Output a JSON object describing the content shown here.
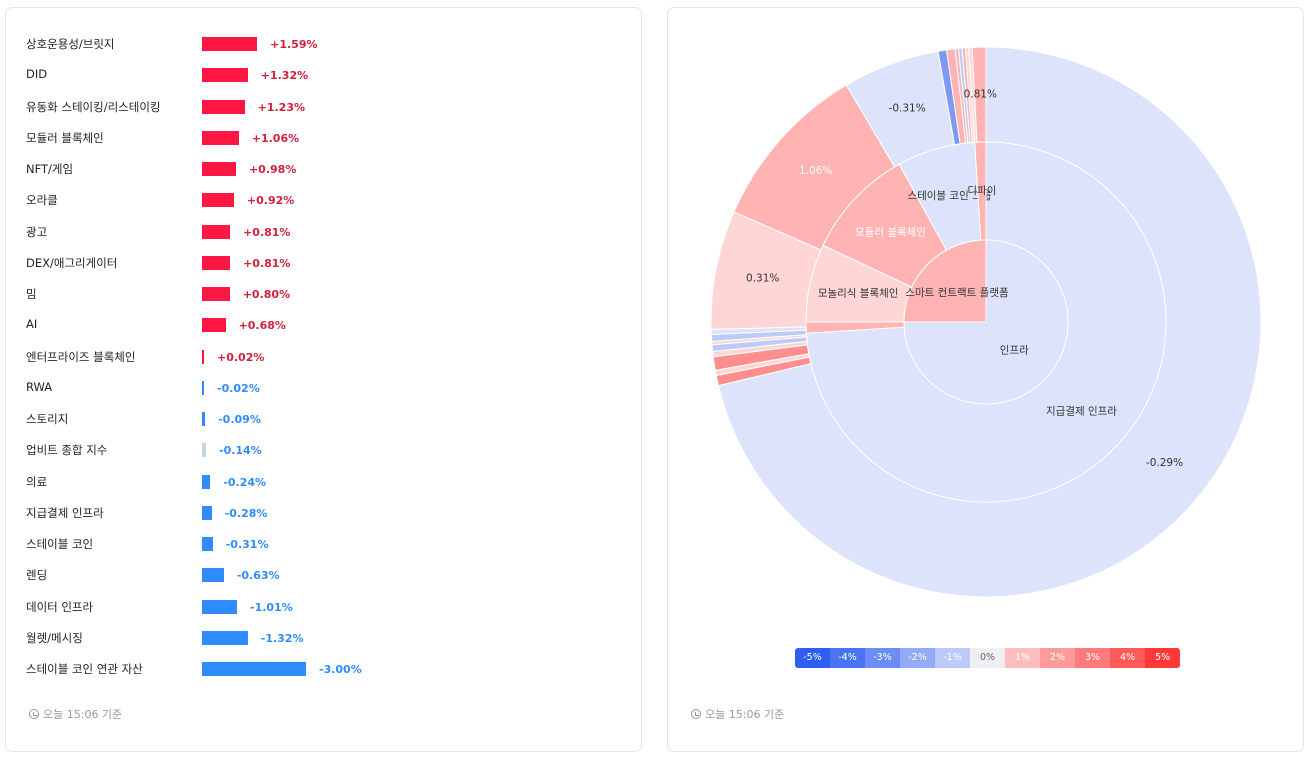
{
  "chart_data": [
    {
      "type": "bar",
      "orientation": "horizontal",
      "categories": [
        "상호운용성/브릿지",
        "DID",
        "유동화 스테이킹/리스테이킹",
        "모듈러 블록체인",
        "NFT/게임",
        "오라클",
        "광고",
        "DEX/애그리게이터",
        "밈",
        "AI",
        "엔터프라이즈 블록체인",
        "RWA",
        "스토리지",
        "업비트 종합 지수",
        "의료",
        "지급결제 인프라",
        "스테이블 코인",
        "렌딩",
        "데이터 인프라",
        "월렛/메시징",
        "스테이블 코인 연관 자산"
      ],
      "values": [
        1.59,
        1.32,
        1.23,
        1.06,
        0.98,
        0.92,
        0.81,
        0.81,
        0.8,
        0.68,
        0.02,
        -0.02,
        -0.09,
        -0.14,
        -0.24,
        -0.28,
        -0.31,
        -0.63,
        -1.01,
        -1.32,
        -3.0
      ],
      "value_labels": [
        "+1.59%",
        "+1.32%",
        "+1.23%",
        "+1.06%",
        "+0.98%",
        "+0.92%",
        "+0.81%",
        "+0.81%",
        "+0.80%",
        "+0.68%",
        "+0.02%",
        "-0.02%",
        "-0.09%",
        "-0.14%",
        "-0.24%",
        "-0.28%",
        "-0.31%",
        "-0.63%",
        "-1.01%",
        "-1.32%",
        "-3.00%"
      ]
    },
    {
      "type": "sunburst",
      "rings": {
        "inner": [
          {
            "label": "인프라",
            "value": 75,
            "change": -0.29
          },
          {
            "label": "스마트 컨트랙트 플랫폼",
            "value": 25,
            "change": 0.5
          }
        ],
        "middle": [
          {
            "label": "지급결제 인프라",
            "value": 74,
            "change": -0.29
          },
          {
            "label": "",
            "value": 1,
            "change": 0.9
          },
          {
            "label": "모놀리식 블록체인",
            "value": 7,
            "change": 0.31
          },
          {
            "label": "모듈러 블록체인",
            "value": 10,
            "change": 1.06
          },
          {
            "label": "스테이블 코인 그룹",
            "value": 7,
            "change": -0.31
          },
          {
            "label": "디파이",
            "value": 1,
            "change": 0.81
          }
        ],
        "outer": [
          {
            "label": "-0.29%",
            "value": 71.5,
            "change": -0.29
          },
          {
            "label": "",
            "value": 0.6,
            "change": 1.8
          },
          {
            "label": "",
            "value": 0.3,
            "change": 0.3
          },
          {
            "label": "",
            "value": 0.8,
            "change": 1.2
          },
          {
            "label": "",
            "value": 0.3,
            "change": 0.3
          },
          {
            "label": "",
            "value": 0.4,
            "change": -0.9
          },
          {
            "label": "",
            "value": 0.2,
            "change": 0.2
          },
          {
            "label": "",
            "value": 0.4,
            "change": -0.7
          },
          {
            "label": "",
            "value": 0.3,
            "change": -0.2
          },
          {
            "label": "0.31%",
            "value": 7,
            "change": 0.31
          },
          {
            "label": "1.06%",
            "value": 10,
            "change": 1.06
          },
          {
            "label": "-0.31%",
            "value": 5.7,
            "change": -0.31
          },
          {
            "label": "",
            "value": 0.5,
            "change": -1.6
          },
          {
            "label": "",
            "value": 0.5,
            "change": 0.8
          },
          {
            "label": "",
            "value": 0.2,
            "change": 0.5
          },
          {
            "label": "",
            "value": 0.2,
            "change": -0.8
          },
          {
            "label": "",
            "value": 0.2,
            "change": 0.7
          },
          {
            "label": "",
            "value": 0.2,
            "change": 0.3
          },
          {
            "label": "",
            "value": 0.2,
            "change": 0.2
          },
          {
            "label": "0.81%",
            "value": 0.8,
            "change": 0.81
          }
        ]
      }
    }
  ],
  "legend": {
    "items": [
      {
        "label": "-5%",
        "color": "#2f5ef2",
        "text": "#ffffff"
      },
      {
        "label": "-4%",
        "color": "#4b73f4",
        "text": "#ffffff"
      },
      {
        "label": "-3%",
        "color": "#6c8df6",
        "text": "#ffffff"
      },
      {
        "label": "-2%",
        "color": "#92aaf8",
        "text": "#ffffff"
      },
      {
        "label": "-1%",
        "color": "#bccbfa",
        "text": "#ffffff"
      },
      {
        "label": "0%",
        "color": "#eef0f4",
        "text": "#666666"
      },
      {
        "label": "1%",
        "color": "#ffbcbc",
        "text": "#ffffff"
      },
      {
        "label": "2%",
        "color": "#ff9a9a",
        "text": "#ffffff"
      },
      {
        "label": "3%",
        "color": "#ff7a7a",
        "text": "#ffffff"
      },
      {
        "label": "4%",
        "color": "#ff5a5a",
        "text": "#ffffff"
      },
      {
        "label": "5%",
        "color": "#ff3838",
        "text": "#ffffff"
      }
    ]
  },
  "left_footer": "오늘 15:06 기준",
  "right_footer": "오늘 15:06 기준",
  "colors": {
    "positive_bar": "#ff1744",
    "positive_text": "#d0213c",
    "negative_bar": "#2f8cff",
    "negative_text": "#2f8cff",
    "index_bar": "#c5d5e4"
  }
}
